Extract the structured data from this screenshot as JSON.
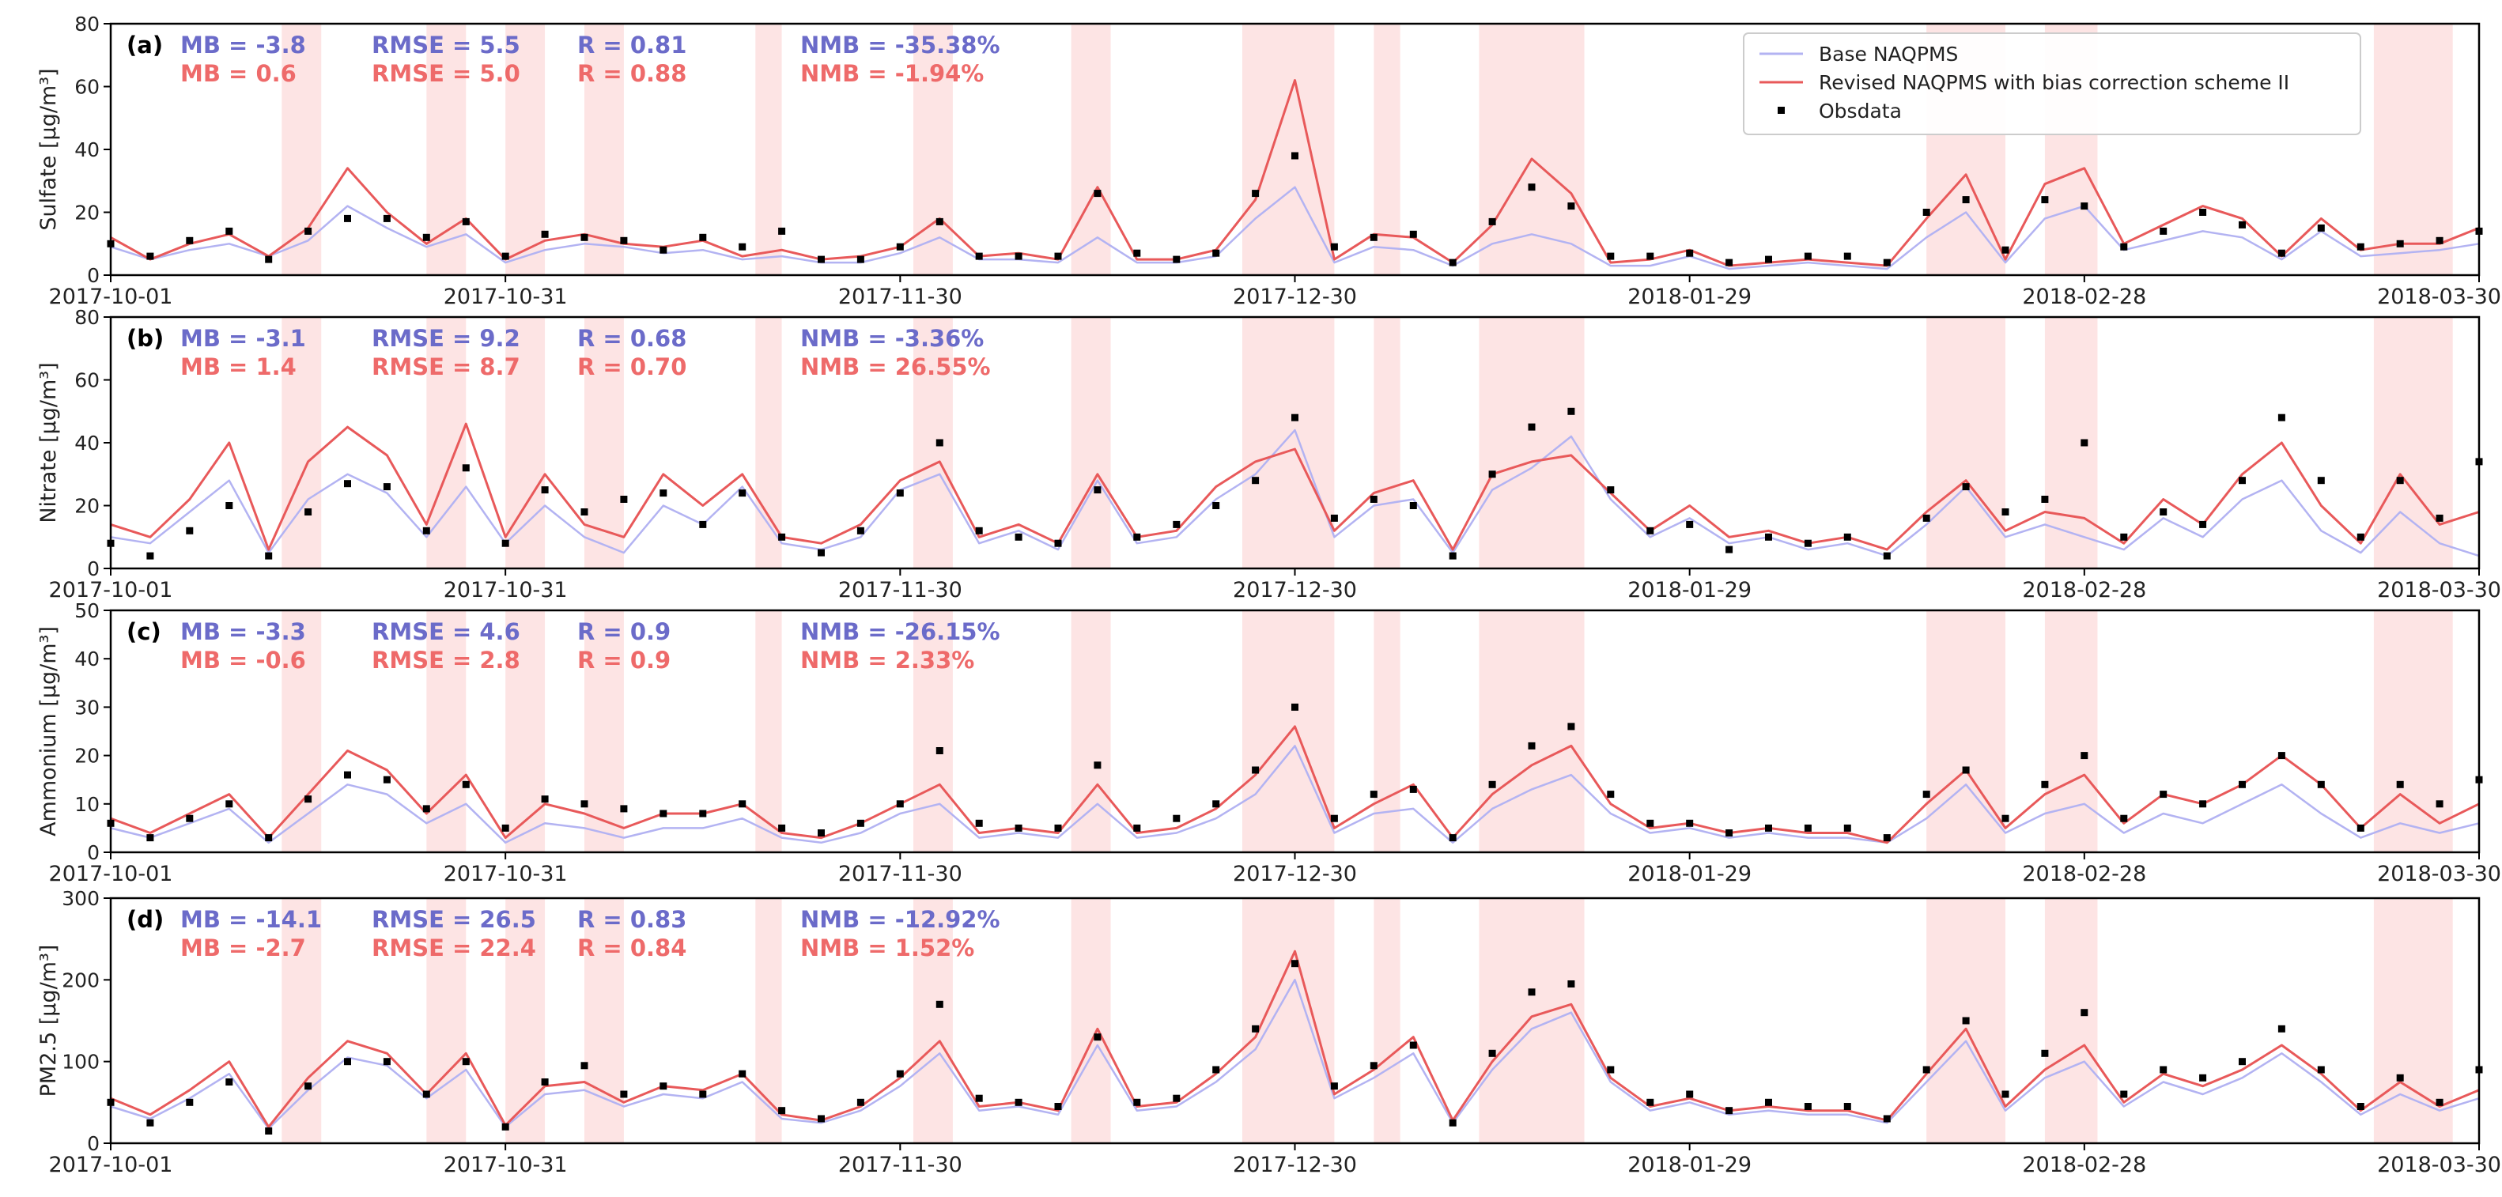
{
  "colors": {
    "base": "#b3b3f2",
    "revised": "#e8595a",
    "obs": "#000000",
    "stat_base": "#6b6bc9",
    "stat_revised": "#ee6a6a",
    "shade": "#fde4e4"
  },
  "legend": {
    "base": "Base NAQPMS",
    "revised": "Revised NAQPMS with bias correction scheme II",
    "obs": "Obsdata"
  },
  "xaxis": {
    "tick_labels": [
      "2017-10-01",
      "2017-10-31",
      "2017-11-30",
      "2017-12-30",
      "2018-01-29",
      "2018-02-28",
      "2018-03-30"
    ],
    "tick_days": [
      0,
      30,
      60,
      90,
      120,
      150,
      180
    ],
    "range_days": [
      0,
      180
    ]
  },
  "shaded_periods_days": [
    [
      13,
      16
    ],
    [
      24,
      27
    ],
    [
      30,
      33
    ],
    [
      36,
      39
    ],
    [
      49,
      51
    ],
    [
      61,
      64
    ],
    [
      73,
      76
    ],
    [
      86,
      93
    ],
    [
      96,
      98
    ],
    [
      104,
      112
    ],
    [
      138,
      144
    ],
    [
      147,
      151
    ],
    [
      172,
      178
    ]
  ],
  "chart_data": [
    {
      "type": "line",
      "panel": "(a)",
      "ylabel": "Sulfate [μg/m³]",
      "ylim": [
        0,
        80
      ],
      "yticks": [
        "0",
        "20",
        "40",
        "60",
        "80"
      ],
      "stats_base": {
        "mb": "MB = -3.8",
        "rmse": "RMSE = 5.5",
        "r": "R = 0.81",
        "nmb": "NMB = -35.38%"
      },
      "stats_revised": {
        "mb": "MB = 0.6",
        "rmse": "RMSE = 5.0",
        "r": "R = 0.88",
        "nmb": "NMB = -1.94%"
      },
      "x_days": [
        0,
        3,
        6,
        9,
        12,
        15,
        18,
        21,
        24,
        27,
        30,
        33,
        36,
        39,
        42,
        45,
        48,
        51,
        54,
        57,
        60,
        63,
        66,
        69,
        72,
        75,
        78,
        81,
        84,
        87,
        90,
        93,
        96,
        99,
        102,
        105,
        108,
        111,
        114,
        117,
        120,
        123,
        126,
        129,
        132,
        135,
        138,
        141,
        144,
        147,
        150,
        153,
        156,
        159,
        162,
        165,
        168,
        171,
        174,
        177,
        180
      ],
      "series": [
        {
          "name": "Base NAQPMS",
          "values": [
            9,
            5,
            8,
            10,
            6,
            11,
            22,
            15,
            9,
            13,
            4,
            8,
            10,
            9,
            7,
            8,
            5,
            6,
            4,
            4,
            7,
            12,
            5,
            5,
            4,
            12,
            4,
            4,
            6,
            18,
            28,
            4,
            9,
            8,
            3,
            10,
            13,
            10,
            3,
            3,
            6,
            2,
            3,
            4,
            3,
            2,
            12,
            20,
            4,
            18,
            22,
            8,
            11,
            14,
            12,
            5,
            14,
            6,
            7,
            8,
            10
          ]
        },
        {
          "name": "Revised NAQPMS with bias correction scheme II",
          "values": [
            12,
            5,
            10,
            13,
            6,
            15,
            34,
            20,
            10,
            18,
            5,
            11,
            13,
            10,
            9,
            11,
            6,
            8,
            5,
            6,
            9,
            18,
            6,
            7,
            5,
            28,
            5,
            5,
            8,
            24,
            62,
            5,
            13,
            12,
            4,
            16,
            37,
            26,
            4,
            5,
            8,
            3,
            4,
            5,
            4,
            3,
            18,
            32,
            5,
            29,
            34,
            10,
            16,
            22,
            18,
            6,
            18,
            8,
            10,
            10,
            15
          ]
        },
        {
          "name": "Obsdata",
          "values": [
            10,
            6,
            11,
            14,
            5,
            14,
            18,
            18,
            12,
            17,
            6,
            13,
            12,
            11,
            8,
            12,
            9,
            14,
            5,
            5,
            9,
            17,
            6,
            6,
            6,
            26,
            7,
            5,
            7,
            26,
            38,
            9,
            12,
            13,
            4,
            17,
            28,
            22,
            6,
            6,
            7,
            4,
            5,
            6,
            6,
            4,
            20,
            24,
            8,
            24,
            22,
            9,
            14,
            20,
            16,
            7,
            15,
            9,
            10,
            11,
            14
          ]
        }
      ]
    },
    {
      "type": "line",
      "panel": "(b)",
      "ylabel": "Nitrate [μg/m³]",
      "ylim": [
        0,
        80
      ],
      "yticks": [
        "0",
        "20",
        "40",
        "60",
        "80"
      ],
      "stats_base": {
        "mb": "MB = -3.1",
        "rmse": "RMSE = 9.2",
        "r": "R = 0.68",
        "nmb": "NMB = -3.36%"
      },
      "stats_revised": {
        "mb": "MB = 1.4",
        "rmse": "RMSE = 8.7",
        "r": "R = 0.70",
        "nmb": "NMB = 26.55%"
      },
      "x_days": [
        0,
        3,
        6,
        9,
        12,
        15,
        18,
        21,
        24,
        27,
        30,
        33,
        36,
        39,
        42,
        45,
        48,
        51,
        54,
        57,
        60,
        63,
        66,
        69,
        72,
        75,
        78,
        81,
        84,
        87,
        90,
        93,
        96,
        99,
        102,
        105,
        108,
        111,
        114,
        117,
        120,
        123,
        126,
        129,
        132,
        135,
        138,
        141,
        144,
        147,
        150,
        153,
        156,
        159,
        162,
        165,
        168,
        171,
        174,
        177,
        180
      ],
      "series": [
        {
          "name": "Base NAQPMS",
          "values": [
            10,
            8,
            18,
            28,
            5,
            22,
            30,
            24,
            10,
            26,
            8,
            20,
            10,
            5,
            20,
            14,
            26,
            8,
            6,
            10,
            25,
            30,
            8,
            12,
            6,
            28,
            8,
            10,
            22,
            30,
            44,
            10,
            20,
            22,
            5,
            25,
            32,
            42,
            22,
            10,
            16,
            8,
            10,
            6,
            8,
            4,
            14,
            26,
            10,
            14,
            10,
            6,
            16,
            10,
            22,
            28,
            12,
            5,
            18,
            8,
            4
          ]
        },
        {
          "name": "Revised NAQPMS with bias correction scheme II",
          "values": [
            14,
            10,
            22,
            40,
            6,
            34,
            45,
            36,
            14,
            46,
            10,
            30,
            14,
            10,
            30,
            20,
            30,
            10,
            8,
            14,
            28,
            34,
            10,
            14,
            8,
            30,
            10,
            12,
            26,
            34,
            38,
            12,
            24,
            28,
            6,
            30,
            34,
            36,
            24,
            12,
            20,
            10,
            12,
            8,
            10,
            6,
            18,
            28,
            12,
            18,
            16,
            8,
            22,
            14,
            30,
            40,
            20,
            8,
            30,
            14,
            18
          ]
        },
        {
          "name": "Obsdata",
          "values": [
            8,
            4,
            12,
            20,
            4,
            18,
            27,
            26,
            12,
            32,
            8,
            25,
            18,
            22,
            24,
            14,
            24,
            10,
            5,
            12,
            24,
            40,
            12,
            10,
            8,
            25,
            10,
            14,
            20,
            28,
            48,
            16,
            22,
            20,
            4,
            30,
            45,
            50,
            25,
            12,
            14,
            6,
            10,
            8,
            10,
            4,
            16,
            26,
            18,
            22,
            40,
            10,
            18,
            14,
            28,
            48,
            28,
            10,
            28,
            16,
            34
          ]
        }
      ]
    },
    {
      "type": "line",
      "panel": "(c)",
      "ylabel": "Ammonium [μg/m³]",
      "ylim": [
        0,
        50
      ],
      "yticks": [
        "0",
        "10",
        "20",
        "30",
        "40",
        "50"
      ],
      "stats_base": {
        "mb": "MB = -3.3",
        "rmse": "RMSE = 4.6",
        "r": "R = 0.9",
        "nmb": "NMB = -26.15%"
      },
      "stats_revised": {
        "mb": "MB = -0.6",
        "rmse": "RMSE = 2.8",
        "r": "R = 0.9",
        "nmb": "NMB = 2.33%"
      },
      "x_days": [
        0,
        3,
        6,
        9,
        12,
        15,
        18,
        21,
        24,
        27,
        30,
        33,
        36,
        39,
        42,
        45,
        48,
        51,
        54,
        57,
        60,
        63,
        66,
        69,
        72,
        75,
        78,
        81,
        84,
        87,
        90,
        93,
        96,
        99,
        102,
        105,
        108,
        111,
        114,
        117,
        120,
        123,
        126,
        129,
        132,
        135,
        138,
        141,
        144,
        147,
        150,
        153,
        156,
        159,
        162,
        165,
        168,
        171,
        174,
        177,
        180
      ],
      "series": [
        {
          "name": "Base NAQPMS",
          "values": [
            5,
            3,
            6,
            9,
            2,
            8,
            14,
            12,
            6,
            10,
            2,
            6,
            5,
            3,
            5,
            5,
            7,
            3,
            2,
            4,
            8,
            10,
            3,
            4,
            3,
            10,
            3,
            4,
            7,
            12,
            22,
            4,
            8,
            9,
            2,
            9,
            13,
            16,
            8,
            4,
            5,
            3,
            4,
            3,
            3,
            2,
            7,
            14,
            4,
            8,
            10,
            4,
            8,
            6,
            10,
            14,
            8,
            3,
            6,
            4,
            6
          ]
        },
        {
          "name": "Revised NAQPMS with bias correction scheme II",
          "values": [
            7,
            4,
            8,
            12,
            3,
            12,
            21,
            17,
            8,
            16,
            3,
            10,
            8,
            5,
            8,
            8,
            10,
            4,
            3,
            6,
            10,
            14,
            4,
            5,
            4,
            14,
            4,
            5,
            9,
            16,
            26,
            5,
            10,
            14,
            3,
            12,
            18,
            22,
            10,
            5,
            6,
            4,
            5,
            4,
            4,
            2,
            10,
            17,
            5,
            12,
            16,
            6,
            12,
            10,
            14,
            20,
            14,
            5,
            12,
            6,
            10
          ]
        },
        {
          "name": "Obsdata",
          "values": [
            6,
            3,
            7,
            10,
            3,
            11,
            16,
            15,
            9,
            14,
            5,
            11,
            10,
            9,
            8,
            8,
            10,
            5,
            4,
            6,
            10,
            21,
            6,
            5,
            5,
            18,
            5,
            7,
            10,
            17,
            30,
            7,
            12,
            13,
            3,
            14,
            22,
            26,
            12,
            6,
            6,
            4,
            5,
            5,
            5,
            3,
            12,
            17,
            7,
            14,
            20,
            7,
            12,
            10,
            14,
            20,
            14,
            5,
            14,
            10,
            15
          ]
        }
      ]
    },
    {
      "type": "line",
      "panel": "(d)",
      "ylabel": "PM2.5 [μg/m³]",
      "ylim": [
        0,
        300
      ],
      "yticks": [
        "0",
        "100",
        "200",
        "300"
      ],
      "stats_base": {
        "mb": "MB = -14.1",
        "rmse": "RMSE = 26.5",
        "r": "R = 0.83",
        "nmb": "NMB = -12.92%"
      },
      "stats_revised": {
        "mb": "MB = -2.7",
        "rmse": "RMSE = 22.4",
        "r": "R = 0.84",
        "nmb": "NMB = 1.52%"
      },
      "x_days": [
        0,
        3,
        6,
        9,
        12,
        15,
        18,
        21,
        24,
        27,
        30,
        33,
        36,
        39,
        42,
        45,
        48,
        51,
        54,
        57,
        60,
        63,
        66,
        69,
        72,
        75,
        78,
        81,
        84,
        87,
        90,
        93,
        96,
        99,
        102,
        105,
        108,
        111,
        114,
        117,
        120,
        123,
        126,
        129,
        132,
        135,
        138,
        141,
        144,
        147,
        150,
        153,
        156,
        159,
        162,
        165,
        168,
        171,
        174,
        177,
        180
      ],
      "series": [
        {
          "name": "Base NAQPMS",
          "values": [
            45,
            30,
            55,
            85,
            18,
            65,
            105,
            95,
            55,
            90,
            20,
            60,
            65,
            45,
            60,
            55,
            75,
            30,
            25,
            40,
            70,
            110,
            40,
            45,
            35,
            120,
            40,
            45,
            75,
            115,
            200,
            55,
            80,
            110,
            25,
            90,
            140,
            160,
            75,
            40,
            50,
            35,
            40,
            35,
            35,
            25,
            75,
            125,
            40,
            80,
            100,
            45,
            75,
            60,
            80,
            110,
            75,
            35,
            60,
            40,
            55
          ]
        },
        {
          "name": "Revised NAQPMS with bias correction scheme II",
          "values": [
            55,
            35,
            65,
            100,
            20,
            80,
            125,
            110,
            60,
            110,
            22,
            70,
            75,
            50,
            70,
            65,
            85,
            35,
            28,
            45,
            80,
            125,
            45,
            50,
            40,
            140,
            45,
            50,
            85,
            130,
            235,
            60,
            90,
            130,
            28,
            100,
            155,
            170,
            80,
            45,
            55,
            40,
            45,
            40,
            40,
            28,
            85,
            140,
            45,
            90,
            120,
            50,
            85,
            70,
            90,
            120,
            85,
            40,
            75,
            45,
            65
          ]
        },
        {
          "name": "Obsdata",
          "values": [
            50,
            25,
            50,
            75,
            15,
            70,
            100,
            100,
            60,
            100,
            20,
            75,
            95,
            60,
            70,
            60,
            85,
            40,
            30,
            50,
            85,
            170,
            55,
            50,
            45,
            130,
            50,
            55,
            90,
            140,
            220,
            70,
            95,
            120,
            25,
            110,
            185,
            195,
            90,
            50,
            60,
            40,
            50,
            45,
            45,
            30,
            90,
            150,
            60,
            110,
            160,
            60,
            90,
            80,
            100,
            140,
            90,
            45,
            80,
            50,
            90
          ]
        }
      ]
    }
  ]
}
